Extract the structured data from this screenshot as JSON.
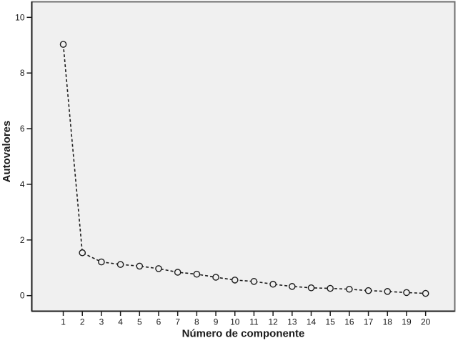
{
  "chart_data": {
    "type": "line",
    "title": "",
    "xlabel": "Número de componente",
    "ylabel": "Autovalores",
    "x": [
      1,
      2,
      3,
      4,
      5,
      6,
      7,
      8,
      9,
      10,
      11,
      12,
      13,
      14,
      15,
      16,
      17,
      18,
      19,
      20
    ],
    "values": [
      9.03,
      1.54,
      1.21,
      1.12,
      1.06,
      0.97,
      0.84,
      0.77,
      0.66,
      0.56,
      0.51,
      0.41,
      0.33,
      0.28,
      0.26,
      0.23,
      0.18,
      0.15,
      0.11,
      0.08
    ],
    "xtick_labels": [
      "1",
      "2",
      "3",
      "4",
      "5",
      "6",
      "7",
      "8",
      "9",
      "10",
      "11",
      "12",
      "13",
      "14",
      "15",
      "16",
      "17",
      "18",
      "19",
      "20"
    ],
    "yticks": [
      0,
      2,
      4,
      6,
      8,
      10
    ],
    "ytick_labels": [
      "0",
      "2",
      "4",
      "6",
      "8",
      "10"
    ],
    "xlim": [
      -0.65,
      21.53
    ],
    "ylim": [
      -0.56,
      10.56
    ],
    "grid": "off",
    "legend": "none",
    "line_style": "dashed",
    "marker": "open-circle",
    "colors": {
      "line": "#1c1c1c",
      "marker_stroke": "#1c1c1c",
      "marker_fill": "#f0f0f0",
      "plot_background": "#f0f0f0",
      "frame_border": "#6f6f6f",
      "axis_line": "#1c1c1c",
      "page_background": "#ffffff",
      "text": "#1a1a1a"
    }
  }
}
